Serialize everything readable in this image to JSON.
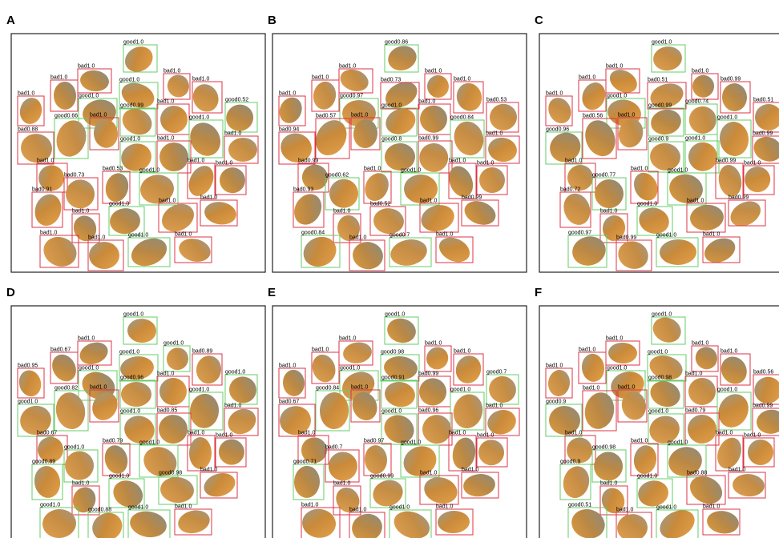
{
  "panels": [
    {
      "letter": "A",
      "detections": [
        {
          "label": "good1.0",
          "color": "#66cc66"
        },
        {
          "label": "bad1.0",
          "color": "#dd3344"
        },
        {
          "label": "bad1.0",
          "color": "#dd3344"
        },
        {
          "label": "good1.0",
          "color": "#66cc66"
        },
        {
          "label": "bad1.0",
          "color": "#dd3344"
        },
        {
          "label": "bad1.0",
          "color": "#dd3344"
        },
        {
          "label": "bad1.0",
          "color": "#dd3344"
        },
        {
          "label": "good1.0",
          "color": "#66cc66"
        },
        {
          "label": "good0.99",
          "color": "#66cc66"
        },
        {
          "label": "bad1.0",
          "color": "#dd3344"
        },
        {
          "label": "good0.52",
          "color": "#66cc66"
        },
        {
          "label": "good0.66",
          "color": "#66cc66"
        },
        {
          "label": "bad1.0",
          "color": "#dd3344"
        },
        {
          "label": "good1.0",
          "color": "#66cc66"
        },
        {
          "label": "bad0.88",
          "color": "#dd3344"
        },
        {
          "label": "good1.0",
          "color": "#66cc66"
        },
        {
          "label": "bad1.0",
          "color": "#dd3344"
        },
        {
          "label": "bad1.0",
          "color": "#dd3344"
        },
        {
          "label": "bad1.0",
          "color": "#dd3344"
        },
        {
          "label": "bad0.53",
          "color": "#dd3344"
        },
        {
          "label": "good1.0",
          "color": "#66cc66"
        },
        {
          "label": "bad1.0",
          "color": "#dd3344"
        },
        {
          "label": "bad1.0",
          "color": "#dd3344"
        },
        {
          "label": "bad0.73",
          "color": "#dd3344"
        },
        {
          "label": "bad0.91",
          "color": "#dd3344"
        },
        {
          "label": "good1.0",
          "color": "#66cc66"
        },
        {
          "label": "bad1.0",
          "color": "#dd3344"
        },
        {
          "label": "bad1.0",
          "color": "#dd3344"
        },
        {
          "label": "bad1.0",
          "color": "#dd3344"
        },
        {
          "label": "bad1.0",
          "color": "#dd3344"
        },
        {
          "label": "bad1.0",
          "color": "#dd3344"
        },
        {
          "label": "good1.0",
          "color": "#66cc66"
        },
        {
          "label": "bad1.0",
          "color": "#dd3344"
        }
      ]
    },
    {
      "letter": "B",
      "detections": [
        {
          "label": "good0.86",
          "color": "#66cc66"
        },
        {
          "label": "bad1.0",
          "color": "#dd3344"
        },
        {
          "label": "bad1.0",
          "color": "#dd3344"
        },
        {
          "label": "bad0.73",
          "color": "#dd3344"
        },
        {
          "label": "bad1.0",
          "color": "#dd3344"
        },
        {
          "label": "bad1.0",
          "color": "#dd3344"
        },
        {
          "label": "bad1.0",
          "color": "#dd3344"
        },
        {
          "label": "good0.97",
          "color": "#66cc66"
        },
        {
          "label": "good1.0",
          "color": "#66cc66"
        },
        {
          "label": "bad1.0",
          "color": "#dd3344"
        },
        {
          "label": "bad0.53",
          "color": "#dd3344"
        },
        {
          "label": "bad0.57",
          "color": "#dd3344"
        },
        {
          "label": "bad1.0",
          "color": "#dd3344"
        },
        {
          "label": "good0.84",
          "color": "#66cc66"
        },
        {
          "label": "bad0.94",
          "color": "#dd3344"
        },
        {
          "label": "good0.8",
          "color": "#66cc66"
        },
        {
          "label": "bad0.99",
          "color": "#dd3344"
        },
        {
          "label": "bad1.0",
          "color": "#dd3344"
        },
        {
          "label": "bad0.99",
          "color": "#dd3344"
        },
        {
          "label": "bad1.0",
          "color": "#dd3344"
        },
        {
          "label": "good1.0",
          "color": "#66cc66"
        },
        {
          "label": "bad1.0",
          "color": "#dd3344"
        },
        {
          "label": "bad1.0",
          "color": "#dd3344"
        },
        {
          "label": "good0.62",
          "color": "#66cc66"
        },
        {
          "label": "bad0.93",
          "color": "#dd3344"
        },
        {
          "label": "bad0.52",
          "color": "#dd3344"
        },
        {
          "label": "bad1.0",
          "color": "#dd3344"
        },
        {
          "label": "bad0.99",
          "color": "#dd3344"
        },
        {
          "label": "bad1.0",
          "color": "#dd3344"
        },
        {
          "label": "good0.84",
          "color": "#66cc66"
        },
        {
          "label": "bad1.0",
          "color": "#dd3344"
        },
        {
          "label": "good0.7",
          "color": "#66cc66"
        },
        {
          "label": "bad1.0",
          "color": "#dd3344"
        }
      ]
    },
    {
      "letter": "C",
      "detections": [
        {
          "label": "good1.0",
          "color": "#66cc66"
        },
        {
          "label": "bad1.0",
          "color": "#dd3344"
        },
        {
          "label": "bad1.0",
          "color": "#dd3344"
        },
        {
          "label": "bad0.51",
          "color": "#dd3344"
        },
        {
          "label": "bad1.0",
          "color": "#dd3344"
        },
        {
          "label": "bad0.99",
          "color": "#dd3344"
        },
        {
          "label": "bad1.0",
          "color": "#dd3344"
        },
        {
          "label": "good1.0",
          "color": "#66cc66"
        },
        {
          "label": "good0.99",
          "color": "#66cc66"
        },
        {
          "label": "good0.74",
          "color": "#66cc66"
        },
        {
          "label": "bad0.51",
          "color": "#dd3344"
        },
        {
          "label": "bad0.56",
          "color": "#dd3344"
        },
        {
          "label": "bad1.0",
          "color": "#dd3344"
        },
        {
          "label": "good1.0",
          "color": "#66cc66"
        },
        {
          "label": "good0.96",
          "color": "#66cc66"
        },
        {
          "label": "good0.9",
          "color": "#66cc66"
        },
        {
          "label": "good1.0",
          "color": "#66cc66"
        },
        {
          "label": "bad0.99",
          "color": "#dd3344"
        },
        {
          "label": "bad1.0",
          "color": "#dd3344"
        },
        {
          "label": "bad1.0",
          "color": "#dd3344"
        },
        {
          "label": "good1.0",
          "color": "#66cc66"
        },
        {
          "label": "bad0.99",
          "color": "#dd3344"
        },
        {
          "label": "bad1.0",
          "color": "#dd3344"
        },
        {
          "label": "good0.77",
          "color": "#66cc66"
        },
        {
          "label": "bad0.72",
          "color": "#dd3344"
        },
        {
          "label": "good1.0",
          "color": "#66cc66"
        },
        {
          "label": "bad1.0",
          "color": "#dd3344"
        },
        {
          "label": "bad0.99",
          "color": "#dd3344"
        },
        {
          "label": "bad1.0",
          "color": "#dd3344"
        },
        {
          "label": "good0.97",
          "color": "#66cc66"
        },
        {
          "label": "bad0.99",
          "color": "#dd3344"
        },
        {
          "label": "good1.0",
          "color": "#66cc66"
        },
        {
          "label": "bad1.0",
          "color": "#dd3344"
        }
      ]
    },
    {
      "letter": "D",
      "detections": [
        {
          "label": "good1.0",
          "color": "#66cc66"
        },
        {
          "label": "bad1.0",
          "color": "#dd3344"
        },
        {
          "label": "good1.0",
          "color": "#66cc66"
        },
        {
          "label": "good1.0",
          "color": "#66cc66"
        },
        {
          "label": "bad0.67",
          "color": "#dd3344"
        },
        {
          "label": "bad0.89",
          "color": "#dd3344"
        },
        {
          "label": "bad0.95",
          "color": "#dd3344"
        },
        {
          "label": "good1.0",
          "color": "#66cc66"
        },
        {
          "label": "good0.96",
          "color": "#66cc66"
        },
        {
          "label": "bad1.0",
          "color": "#dd3344"
        },
        {
          "label": "good1.0",
          "color": "#66cc66"
        },
        {
          "label": "good0.82",
          "color": "#66cc66"
        },
        {
          "label": "bad1.0",
          "color": "#dd3344"
        },
        {
          "label": "good1.0",
          "color": "#66cc66"
        },
        {
          "label": "good1.0",
          "color": "#66cc66"
        },
        {
          "label": "good1.0",
          "color": "#66cc66"
        },
        {
          "label": "bad0.85",
          "color": "#dd3344"
        },
        {
          "label": "bad1.0",
          "color": "#dd3344"
        },
        {
          "label": "bad0.67",
          "color": "#dd3344"
        },
        {
          "label": "bad0.79",
          "color": "#dd3344"
        },
        {
          "label": "good1.0",
          "color": "#66cc66"
        },
        {
          "label": "bad1.0",
          "color": "#dd3344"
        },
        {
          "label": "bad1.0",
          "color": "#dd3344"
        },
        {
          "label": "good1.0",
          "color": "#66cc66"
        },
        {
          "label": "good0.89",
          "color": "#66cc66"
        },
        {
          "label": "good1.0",
          "color": "#66cc66"
        },
        {
          "label": "good0.98",
          "color": "#66cc66"
        },
        {
          "label": "bad1.0",
          "color": "#dd3344"
        },
        {
          "label": "bad1.0",
          "color": "#dd3344"
        },
        {
          "label": "good1.0",
          "color": "#66cc66"
        },
        {
          "label": "good0.88",
          "color": "#66cc66"
        },
        {
          "label": "good1.0",
          "color": "#66cc66"
        },
        {
          "label": "bad1.0",
          "color": "#dd3344"
        }
      ]
    },
    {
      "letter": "E",
      "detections": [
        {
          "label": "good1.0",
          "color": "#66cc66"
        },
        {
          "label": "bad1.0",
          "color": "#dd3344"
        },
        {
          "label": "bad1.0",
          "color": "#dd3344"
        },
        {
          "label": "good0.98",
          "color": "#66cc66"
        },
        {
          "label": "bad1.0",
          "color": "#dd3344"
        },
        {
          "label": "bad1.0",
          "color": "#dd3344"
        },
        {
          "label": "bad1.0",
          "color": "#dd3344"
        },
        {
          "label": "good1.0",
          "color": "#66cc66"
        },
        {
          "label": "good0.91",
          "color": "#66cc66"
        },
        {
          "label": "bad0.99",
          "color": "#dd3344"
        },
        {
          "label": "good0.7",
          "color": "#66cc66"
        },
        {
          "label": "good0.84",
          "color": "#66cc66"
        },
        {
          "label": "bad1.0",
          "color": "#dd3344"
        },
        {
          "label": "good1.0",
          "color": "#66cc66"
        },
        {
          "label": "bad0.67",
          "color": "#dd3344"
        },
        {
          "label": "good1.0",
          "color": "#66cc66"
        },
        {
          "label": "bad0.96",
          "color": "#dd3344"
        },
        {
          "label": "bad1.0",
          "color": "#dd3344"
        },
        {
          "label": "bad1.0",
          "color": "#dd3344"
        },
        {
          "label": "bad0.97",
          "color": "#dd3344"
        },
        {
          "label": "good1.0",
          "color": "#66cc66"
        },
        {
          "label": "bad1.0",
          "color": "#dd3344"
        },
        {
          "label": "bad1.0",
          "color": "#dd3344"
        },
        {
          "label": "bad0.7",
          "color": "#dd3344"
        },
        {
          "label": "good0.71",
          "color": "#66cc66"
        },
        {
          "label": "good0.99",
          "color": "#66cc66"
        },
        {
          "label": "bad1.0",
          "color": "#dd3344"
        },
        {
          "label": "bad1.0",
          "color": "#dd3344"
        },
        {
          "label": "bad1.0",
          "color": "#dd3344"
        },
        {
          "label": "bad1.0",
          "color": "#dd3344"
        },
        {
          "label": "bad1.0",
          "color": "#dd3344"
        },
        {
          "label": "good1.0",
          "color": "#66cc66"
        },
        {
          "label": "bad1.0",
          "color": "#dd3344"
        }
      ]
    },
    {
      "letter": "F",
      "detections": [
        {
          "label": "good1.0",
          "color": "#66cc66"
        },
        {
          "label": "bad1.0",
          "color": "#dd3344"
        },
        {
          "label": "bad1.0",
          "color": "#dd3344"
        },
        {
          "label": "good1.0",
          "color": "#66cc66"
        },
        {
          "label": "bad1.0",
          "color": "#dd3344"
        },
        {
          "label": "bad1.0",
          "color": "#dd3344"
        },
        {
          "label": "bad1.0",
          "color": "#dd3344"
        },
        {
          "label": "good1.0",
          "color": "#66cc66"
        },
        {
          "label": "good0.98",
          "color": "#66cc66"
        },
        {
          "label": "bad1.0",
          "color": "#dd3344"
        },
        {
          "label": "bad0.56",
          "color": "#dd3344"
        },
        {
          "label": "bad1.0",
          "color": "#dd3344"
        },
        {
          "label": "bad1.0",
          "color": "#dd3344"
        },
        {
          "label": "good1.0",
          "color": "#66cc66"
        },
        {
          "label": "good0.9",
          "color": "#66cc66"
        },
        {
          "label": "good1.0",
          "color": "#66cc66"
        },
        {
          "label": "bad0.79",
          "color": "#dd3344"
        },
        {
          "label": "bad0.99",
          "color": "#dd3344"
        },
        {
          "label": "bad1.0",
          "color": "#dd3344"
        },
        {
          "label": "bad1.0",
          "color": "#dd3344"
        },
        {
          "label": "good1.0",
          "color": "#66cc66"
        },
        {
          "label": "bad1.0",
          "color": "#dd3344"
        },
        {
          "label": "bad1.0",
          "color": "#dd3344"
        },
        {
          "label": "good0.98",
          "color": "#66cc66"
        },
        {
          "label": "good0.9",
          "color": "#66cc66"
        },
        {
          "label": "good1.0",
          "color": "#66cc66"
        },
        {
          "label": "bad0.88",
          "color": "#dd3344"
        },
        {
          "label": "bad1.0",
          "color": "#dd3344"
        },
        {
          "label": "bad1.0",
          "color": "#dd3344"
        },
        {
          "label": "good0.51",
          "color": "#66cc66"
        },
        {
          "label": "bad1.0",
          "color": "#dd3344"
        },
        {
          "label": "good1.0",
          "color": "#66cc66"
        },
        {
          "label": "bad1.0",
          "color": "#dd3344"
        }
      ]
    }
  ]
}
